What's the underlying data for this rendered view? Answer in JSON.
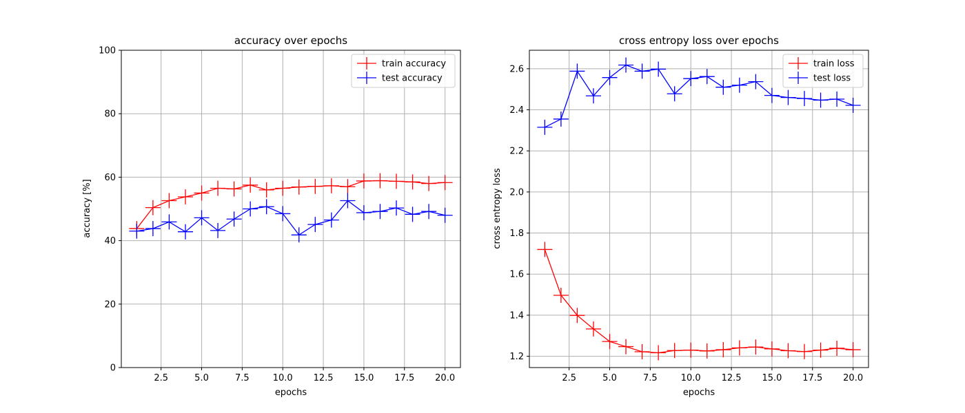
{
  "chart_data": [
    {
      "type": "line",
      "title": "accuracy over epochs",
      "xlabel": "epochs",
      "ylabel": "accuracy [%]",
      "xlim": [
        0.05,
        20.95
      ],
      "ylim": [
        0,
        100
      ],
      "xticks": [
        2.5,
        5.0,
        7.5,
        10.0,
        12.5,
        15.0,
        17.5,
        20.0
      ],
      "xtick_labels": [
        "2.5",
        "5.0",
        "7.5",
        "10.0",
        "12.5",
        "15.0",
        "17.5",
        "20.0"
      ],
      "yticks": [
        0,
        20,
        40,
        60,
        80,
        100
      ],
      "ytick_labels": [
        "0",
        "20",
        "40",
        "60",
        "80",
        "100"
      ],
      "grid": true,
      "legend": "top-right",
      "x": [
        1,
        2,
        3,
        4,
        5,
        6,
        7,
        8,
        9,
        10,
        11,
        12,
        13,
        14,
        15,
        16,
        17,
        18,
        19,
        20
      ],
      "series": [
        {
          "name": "train accuracy",
          "color": "#ff0000",
          "marker": "plus",
          "values": [
            43.8,
            50.4,
            52.6,
            53.8,
            55.0,
            56.5,
            56.3,
            57.5,
            56.0,
            56.5,
            56.9,
            57.1,
            57.3,
            57.0,
            58.8,
            58.9,
            58.7,
            58.5,
            58.0,
            58.3
          ]
        },
        {
          "name": "test accuracy",
          "color": "#0000ff",
          "marker": "plus",
          "values": [
            43.0,
            43.8,
            45.9,
            42.8,
            47.2,
            43.2,
            46.8,
            50.0,
            50.7,
            48.5,
            41.8,
            45.1,
            46.5,
            52.6,
            48.8,
            49.2,
            50.3,
            48.3,
            49.2,
            48.0
          ]
        }
      ]
    },
    {
      "type": "line",
      "title": "cross entropy loss over epochs",
      "xlabel": "epochs",
      "ylabel": "cross entropy loss",
      "xlim": [
        0.05,
        20.95
      ],
      "ylim": [
        1.145,
        2.69
      ],
      "xticks": [
        2.5,
        5.0,
        7.5,
        10.0,
        12.5,
        15.0,
        17.5,
        20.0
      ],
      "xtick_labels": [
        "2.5",
        "5.0",
        "7.5",
        "10.0",
        "12.5",
        "15.0",
        "17.5",
        "20.0"
      ],
      "yticks": [
        1.2,
        1.4,
        1.6,
        1.8,
        2.0,
        2.2,
        2.4,
        2.6
      ],
      "ytick_labels": [
        "1.2",
        "1.4",
        "1.6",
        "1.8",
        "2.0",
        "2.2",
        "2.4",
        "2.6"
      ],
      "grid": true,
      "legend": "top-right",
      "x": [
        1,
        2,
        3,
        4,
        5,
        6,
        7,
        8,
        9,
        10,
        11,
        12,
        13,
        14,
        15,
        16,
        17,
        18,
        19,
        20
      ],
      "series": [
        {
          "name": "train loss",
          "color": "#ff0000",
          "marker": "plus",
          "values": [
            1.72,
            1.497,
            1.399,
            1.333,
            1.272,
            1.247,
            1.222,
            1.217,
            1.228,
            1.23,
            1.226,
            1.232,
            1.241,
            1.245,
            1.236,
            1.227,
            1.223,
            1.23,
            1.239,
            1.232
          ]
        },
        {
          "name": "test loss",
          "color": "#0000ff",
          "marker": "plus",
          "values": [
            2.315,
            2.355,
            2.588,
            2.468,
            2.557,
            2.618,
            2.588,
            2.598,
            2.478,
            2.552,
            2.562,
            2.51,
            2.52,
            2.537,
            2.47,
            2.46,
            2.455,
            2.447,
            2.452,
            2.422
          ]
        }
      ]
    }
  ]
}
